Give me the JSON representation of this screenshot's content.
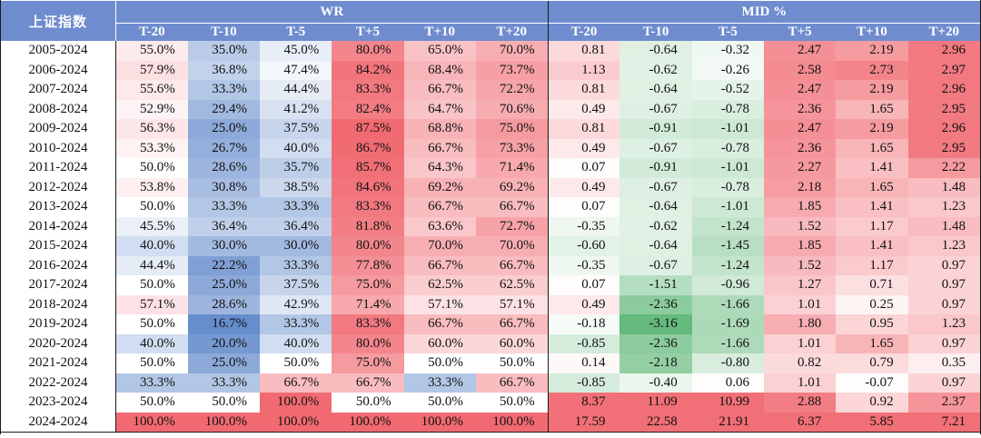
{
  "header": {
    "corner": "上证指数",
    "groups": [
      "WR",
      "MID %"
    ],
    "wr_columns": [
      "T-20",
      "T-10",
      "T-5",
      "T+5",
      "T+10",
      "T+20"
    ],
    "mid_columns": [
      "T-20",
      "T-10",
      "T-5",
      "T+5",
      "T+10",
      "T+20"
    ]
  },
  "rows": [
    {
      "period": "2005-2024",
      "wr": [
        "55.0%",
        "35.0%",
        "45.0%",
        "80.0%",
        "65.0%",
        "70.0%"
      ],
      "mid": [
        "0.81",
        "-0.64",
        "-0.32",
        "2.47",
        "2.19",
        "2.96"
      ]
    },
    {
      "period": "2006-2024",
      "wr": [
        "57.9%",
        "36.8%",
        "47.4%",
        "84.2%",
        "68.4%",
        "73.7%"
      ],
      "mid": [
        "1.13",
        "-0.62",
        "-0.26",
        "2.58",
        "2.73",
        "2.97"
      ]
    },
    {
      "period": "2007-2024",
      "wr": [
        "55.6%",
        "33.3%",
        "44.4%",
        "83.3%",
        "66.7%",
        "72.2%"
      ],
      "mid": [
        "0.81",
        "-0.64",
        "-0.52",
        "2.47",
        "2.19",
        "2.96"
      ]
    },
    {
      "period": "2008-2024",
      "wr": [
        "52.9%",
        "29.4%",
        "41.2%",
        "82.4%",
        "64.7%",
        "70.6%"
      ],
      "mid": [
        "0.49",
        "-0.67",
        "-0.78",
        "2.36",
        "1.65",
        "2.95"
      ]
    },
    {
      "period": "2009-2024",
      "wr": [
        "56.3%",
        "25.0%",
        "37.5%",
        "87.5%",
        "68.8%",
        "75.0%"
      ],
      "mid": [
        "0.81",
        "-0.91",
        "-1.01",
        "2.47",
        "2.19",
        "2.96"
      ]
    },
    {
      "period": "2010-2024",
      "wr": [
        "53.3%",
        "26.7%",
        "40.0%",
        "86.7%",
        "66.7%",
        "73.3%"
      ],
      "mid": [
        "0.49",
        "-0.67",
        "-0.78",
        "2.36",
        "1.65",
        "2.95"
      ]
    },
    {
      "period": "2011-2024",
      "wr": [
        "50.0%",
        "28.6%",
        "35.7%",
        "85.7%",
        "64.3%",
        "71.4%"
      ],
      "mid": [
        "0.07",
        "-0.91",
        "-1.01",
        "2.27",
        "1.41",
        "2.22"
      ]
    },
    {
      "period": "2012-2024",
      "wr": [
        "53.8%",
        "30.8%",
        "38.5%",
        "84.6%",
        "69.2%",
        "69.2%"
      ],
      "mid": [
        "0.49",
        "-0.67",
        "-0.78",
        "2.18",
        "1.65",
        "1.48"
      ]
    },
    {
      "period": "2013-2024",
      "wr": [
        "50.0%",
        "33.3%",
        "33.3%",
        "83.3%",
        "66.7%",
        "66.7%"
      ],
      "mid": [
        "0.07",
        "-0.64",
        "-1.01",
        "1.85",
        "1.41",
        "1.23"
      ]
    },
    {
      "period": "2014-2024",
      "wr": [
        "45.5%",
        "36.4%",
        "36.4%",
        "81.8%",
        "63.6%",
        "72.7%"
      ],
      "mid": [
        "-0.35",
        "-0.62",
        "-1.24",
        "1.52",
        "1.17",
        "1.48"
      ]
    },
    {
      "period": "2015-2024",
      "wr": [
        "40.0%",
        "30.0%",
        "30.0%",
        "80.0%",
        "70.0%",
        "70.0%"
      ],
      "mid": [
        "-0.60",
        "-0.64",
        "-1.45",
        "1.85",
        "1.41",
        "1.23"
      ]
    },
    {
      "period": "2016-2024",
      "wr": [
        "44.4%",
        "22.2%",
        "33.3%",
        "77.8%",
        "66.7%",
        "66.7%"
      ],
      "mid": [
        "-0.35",
        "-0.67",
        "-1.24",
        "1.52",
        "1.17",
        "0.97"
      ]
    },
    {
      "period": "2017-2024",
      "wr": [
        "50.0%",
        "25.0%",
        "37.5%",
        "75.0%",
        "62.5%",
        "62.5%"
      ],
      "mid": [
        "0.07",
        "-1.51",
        "-0.96",
        "1.27",
        "0.71",
        "0.97"
      ]
    },
    {
      "period": "2018-2024",
      "wr": [
        "57.1%",
        "28.6%",
        "42.9%",
        "71.4%",
        "57.1%",
        "57.1%"
      ],
      "mid": [
        "0.49",
        "-2.36",
        "-1.66",
        "1.01",
        "0.25",
        "0.97"
      ]
    },
    {
      "period": "2019-2024",
      "wr": [
        "50.0%",
        "16.7%",
        "33.3%",
        "83.3%",
        "66.7%",
        "66.7%"
      ],
      "mid": [
        "-0.18",
        "-3.16",
        "-1.69",
        "1.80",
        "0.95",
        "1.23"
      ]
    },
    {
      "period": "2020-2024",
      "wr": [
        "40.0%",
        "20.0%",
        "40.0%",
        "80.0%",
        "60.0%",
        "60.0%"
      ],
      "mid": [
        "-0.85",
        "-2.36",
        "-1.66",
        "1.01",
        "1.65",
        "0.97"
      ]
    },
    {
      "period": "2021-2024",
      "wr": [
        "50.0%",
        "25.0%",
        "50.0%",
        "75.0%",
        "50.0%",
        "50.0%"
      ],
      "mid": [
        "0.14",
        "-2.18",
        "-0.80",
        "0.82",
        "0.79",
        "0.35"
      ]
    },
    {
      "period": "2022-2024",
      "wr": [
        "33.3%",
        "33.3%",
        "66.7%",
        "66.7%",
        "33.3%",
        "66.7%"
      ],
      "mid": [
        "-0.85",
        "-0.40",
        "0.06",
        "1.01",
        "-0.07",
        "0.97"
      ]
    },
    {
      "period": "2023-2024",
      "wr": [
        "50.0%",
        "50.0%",
        "100.0%",
        "50.0%",
        "50.0%",
        "50.0%"
      ],
      "mid": [
        "8.37",
        "11.09",
        "10.99",
        "2.88",
        "0.92",
        "2.37"
      ]
    },
    {
      "period": "2024-2024",
      "wr": [
        "100.0%",
        "100.0%",
        "100.0%",
        "100.0%",
        "100.0%",
        "100.0%"
      ],
      "mid": [
        "17.59",
        "22.58",
        "21.91",
        "6.37",
        "5.85",
        "7.21"
      ]
    }
  ],
  "colors": {
    "header_bg": "#6f8ccf",
    "wr_high": "#f0626a",
    "wr_mid": "#ffffff",
    "wr_low": "#5b84c8",
    "mid_pos": "#f0626a",
    "mid_zero": "#ffffff",
    "mid_neg": "#4fb06a"
  }
}
